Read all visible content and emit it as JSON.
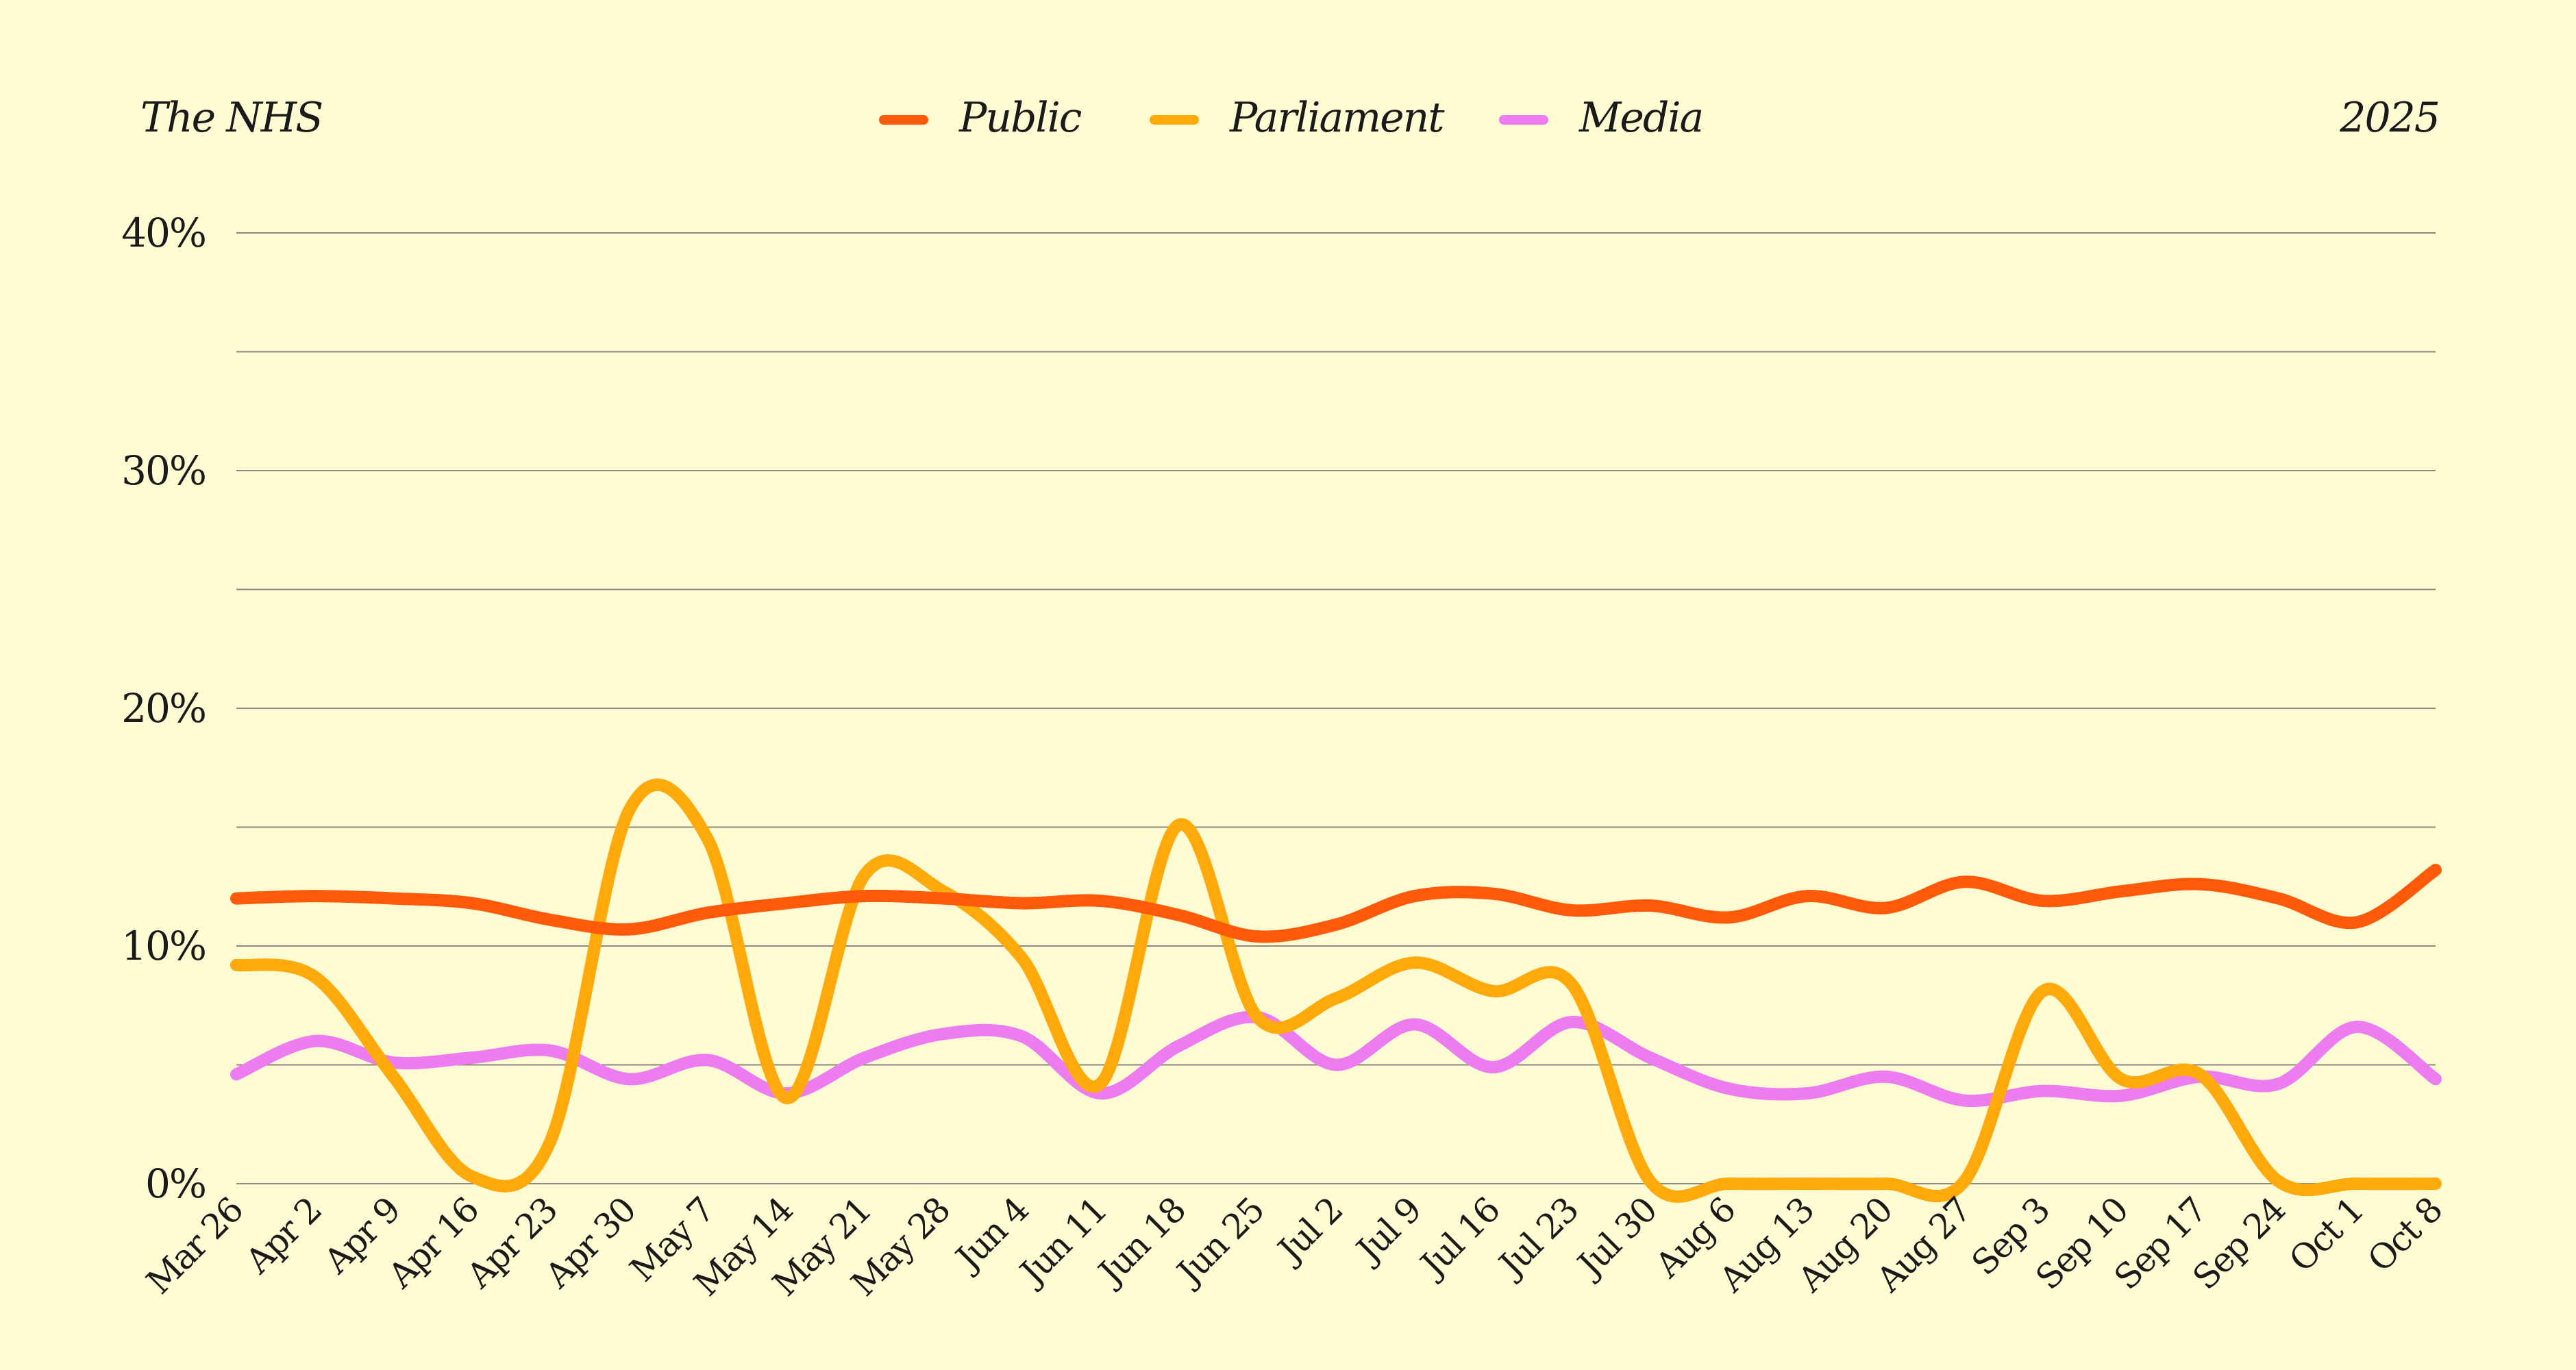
{
  "chart_data": {
    "type": "line",
    "title": "The NHS",
    "year_label": "2025",
    "ylim": [
      0,
      40
    ],
    "y_ticks": [
      0,
      10,
      20,
      30,
      40
    ],
    "y_tick_labels": [
      "0%",
      "10%",
      "20%",
      "30%",
      "40%"
    ],
    "grid": true,
    "legend_position": "top-center",
    "categories": [
      "Mar 26",
      "Apr 2",
      "Apr 9",
      "Apr 16",
      "Apr 23",
      "Apr 30",
      "May 7",
      "May 14",
      "May 21",
      "May 28",
      "Jun 4",
      "Jun 11",
      "Jun 18",
      "Jun 25",
      "Jul 2",
      "Jul 9",
      "Jul 16",
      "Jul 23",
      "Jul 30",
      "Aug 6",
      "Aug 13",
      "Aug 20",
      "Aug 27",
      "Sep 3",
      "Sep 10",
      "Sep 17",
      "Sep 24",
      "Oct 1",
      "Oct 8"
    ],
    "series": [
      {
        "name": "Public",
        "color": "#ff5a0a",
        "values": [
          12.0,
          12.1,
          12.0,
          11.8,
          11.1,
          10.7,
          11.4,
          11.8,
          12.1,
          12.0,
          11.8,
          11.9,
          11.3,
          10.4,
          10.9,
          12.1,
          12.2,
          11.5,
          11.7,
          11.2,
          12.1,
          11.6,
          12.7,
          11.9,
          12.3,
          12.6,
          12.0,
          11.0,
          13.2
        ]
      },
      {
        "name": "Parliament",
        "color": "#ffa90a",
        "values": [
          9.2,
          8.7,
          4.5,
          0.3,
          1.8,
          15.7,
          14.5,
          3.6,
          13.0,
          12.3,
          9.5,
          4.2,
          15.1,
          7.0,
          7.8,
          9.3,
          8.1,
          8.4,
          0.1,
          0.0,
          0.0,
          0.0,
          0.1,
          8.1,
          4.4,
          4.6,
          0.1,
          0.0,
          0.0
        ]
      },
      {
        "name": "Media",
        "color": "#ec7cf0",
        "values": [
          4.6,
          6.0,
          5.1,
          5.3,
          5.6,
          4.4,
          5.2,
          3.8,
          5.3,
          6.3,
          6.2,
          3.8,
          5.8,
          7.0,
          5.0,
          6.7,
          4.9,
          6.8,
          5.3,
          4.0,
          3.8,
          4.5,
          3.5,
          3.9,
          3.7,
          4.5,
          4.2,
          6.6,
          4.4
        ]
      }
    ]
  }
}
